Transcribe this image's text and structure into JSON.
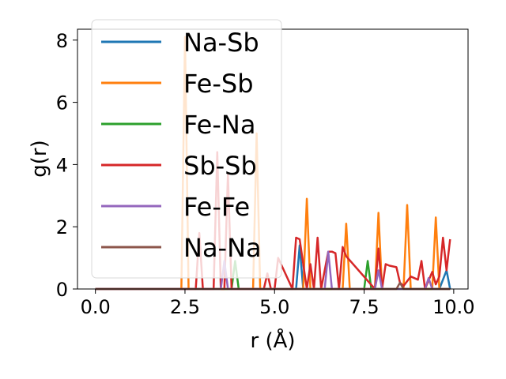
{
  "chart_data": {
    "type": "line",
    "title": "",
    "xlabel": "r (Å)",
    "ylabel": "g(r)",
    "xlim": [
      -0.5,
      10.4
    ],
    "ylim": [
      0,
      8.35
    ],
    "xticks": [
      "0.0",
      "2.5",
      "5.0",
      "7.5",
      "10.0"
    ],
    "xtick_values": [
      0,
      2.5,
      5,
      7.5,
      10
    ],
    "yticks": [
      "0",
      "2",
      "4",
      "6",
      "8"
    ],
    "ytick_values": [
      0,
      2,
      4,
      6,
      8
    ],
    "grid": false,
    "legend_position": "upper-left",
    "series": [
      {
        "name": "Na-Sb",
        "color": "#1f77b4",
        "x": [
          0,
          5.6,
          5.7,
          5.8,
          9.6,
          9.8,
          9.9
        ],
        "y": [
          0,
          0,
          1.4,
          0,
          0,
          0.6,
          0
        ]
      },
      {
        "name": "Fe-Sb",
        "color": "#ff7f0e",
        "x": [
          0,
          2.4,
          2.5,
          2.6,
          4.4,
          4.5,
          4.6,
          5.8,
          5.9,
          6.0,
          6.9,
          7.0,
          7.1,
          7.8,
          7.9,
          8.0,
          8.6,
          8.7,
          8.8,
          9.4,
          9.5,
          9.6,
          9.9
        ],
        "y": [
          0,
          0,
          8.1,
          0,
          0,
          5.0,
          0,
          0,
          2.9,
          0,
          0,
          2.1,
          0,
          0,
          2.45,
          0,
          0,
          2.7,
          0,
          0,
          2.3,
          0,
          0
        ]
      },
      {
        "name": "Fe-Na",
        "color": "#2ca02c",
        "x": [
          0,
          3.8,
          3.9,
          4.0,
          7.5,
          7.6,
          7.7,
          9.9
        ],
        "y": [
          0,
          0,
          0.9,
          0,
          0,
          0.9,
          0,
          0
        ]
      },
      {
        "name": "Sb-Sb",
        "color": "#d62728",
        "x": [
          0,
          2.8,
          2.9,
          3.0,
          3.3,
          3.4,
          3.5,
          3.6,
          3.7,
          3.8,
          4.7,
          4.8,
          4.9,
          5.0,
          5.1,
          5.5,
          5.6,
          5.7,
          5.9,
          6.0,
          6.1,
          6.2,
          6.3,
          6.5,
          6.6,
          6.7,
          6.8,
          6.9,
          7.0,
          7.8,
          7.9,
          8.0,
          8.1,
          8.2,
          8.4,
          8.5,
          8.6,
          8.8,
          9.0,
          9.1,
          9.2,
          9.4,
          9.5,
          9.6,
          9.7,
          9.8,
          9.9
        ],
        "y": [
          0,
          0,
          1.8,
          0,
          0,
          4.4,
          0,
          0,
          3.7,
          0,
          0,
          0.5,
          0,
          0,
          1.0,
          0,
          1.65,
          1.6,
          0,
          0.8,
          0,
          1.65,
          0,
          1.2,
          1.2,
          1.15,
          0,
          1.35,
          1.05,
          0,
          1.3,
          0,
          0.8,
          0.75,
          0.7,
          0.2,
          0.1,
          0.4,
          0.3,
          0.9,
          0,
          0.55,
          0.15,
          0.4,
          1.65,
          0.6,
          1.6
        ]
      },
      {
        "name": "Fe-Fe",
        "color": "#9467bd",
        "x": [
          0,
          3.5,
          3.6,
          3.7,
          6.4,
          6.5,
          6.6,
          7.8,
          7.9,
          8.0,
          9.2,
          9.3,
          9.4,
          9.9
        ],
        "y": [
          0,
          0,
          0.9,
          0,
          0,
          1.2,
          0,
          0,
          0.6,
          0,
          0,
          0.35,
          0,
          0
        ]
      },
      {
        "name": "Na-Na",
        "color": "#8c564b",
        "x": [
          0,
          8.4,
          8.5,
          8.6,
          9.9
        ],
        "y": [
          0,
          0,
          0.2,
          0,
          0
        ]
      }
    ]
  }
}
